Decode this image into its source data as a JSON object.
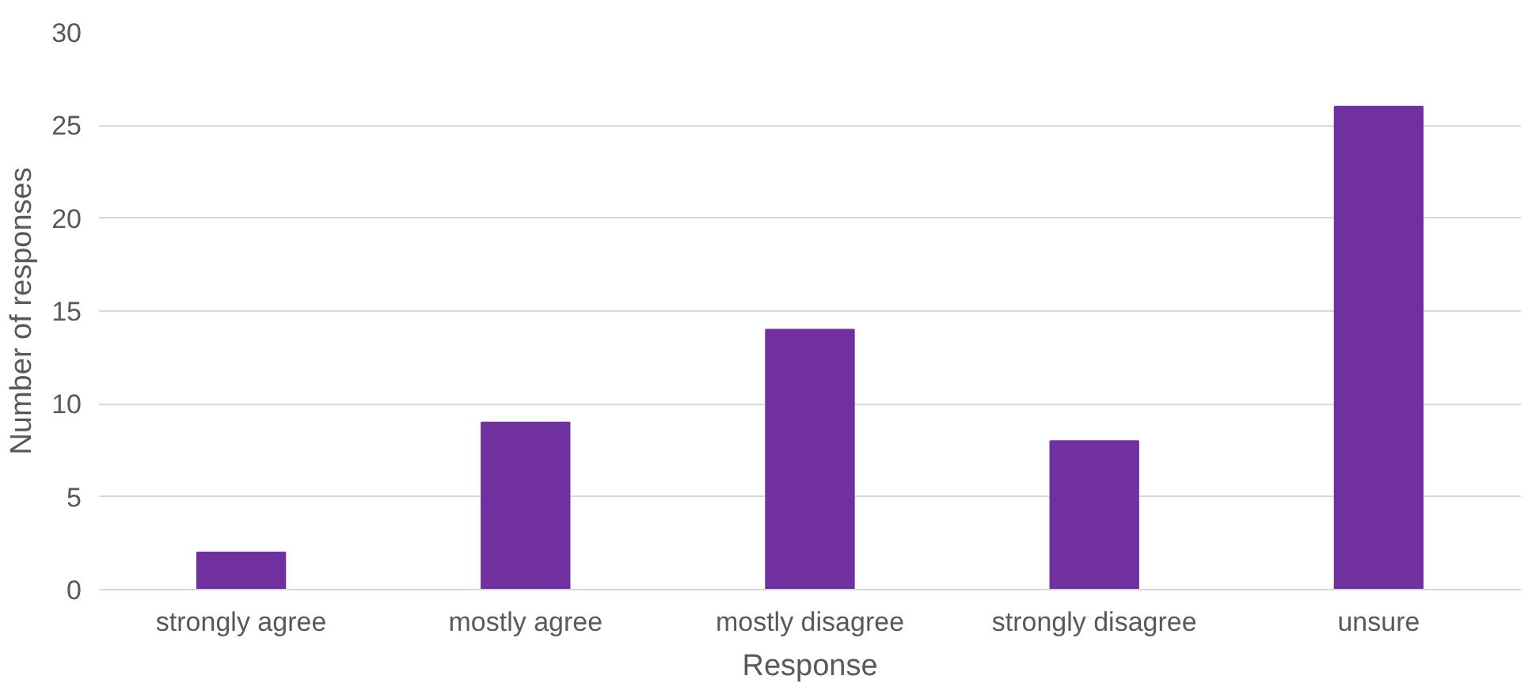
{
  "chart_data": {
    "type": "bar",
    "xlabel": "Response",
    "ylabel": "Number of responses",
    "categories": [
      "strongly agree",
      "mostly agree",
      "mostly disagree",
      "strongly disagree",
      "unsure"
    ],
    "values": [
      2,
      9,
      14,
      8,
      26
    ],
    "color": "#7030a0",
    "ylim": [
      0,
      30
    ],
    "yticks": [
      0,
      5,
      10,
      15,
      20,
      25,
      30
    ],
    "grid": "y"
  }
}
